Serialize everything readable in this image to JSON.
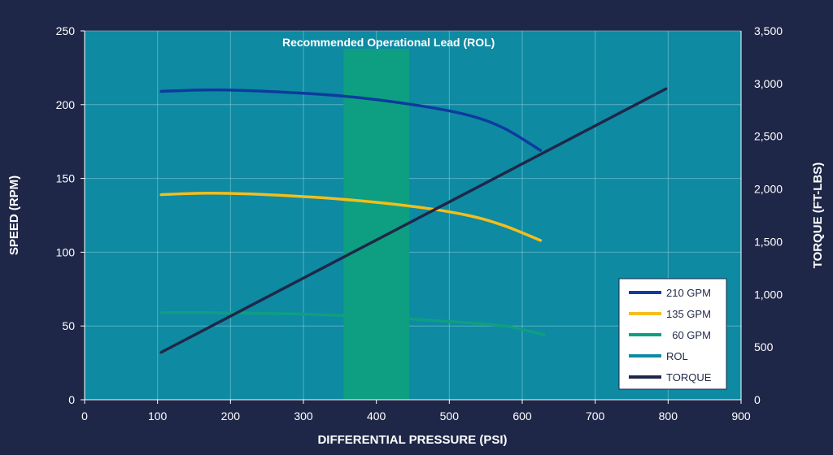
{
  "chart_data": {
    "type": "line",
    "title": "",
    "xlabel": "DIFFERENTIAL PRESSURE (PSI)",
    "ylabel": "SPEED (RPM)",
    "y2label": "TORQUE (FT-LBS)",
    "xlim": [
      0,
      900
    ],
    "ylim": [
      0,
      250
    ],
    "y2lim": [
      0,
      3500
    ],
    "x_ticks": [
      "0",
      "100",
      "200",
      "300",
      "400",
      "500",
      "600",
      "700",
      "800",
      "900"
    ],
    "y_ticks": [
      "0",
      "50",
      "100",
      "150",
      "200",
      "250"
    ],
    "y2_ticks": [
      "0",
      "500",
      "1,000",
      "1,500",
      "2,000",
      "2,500",
      "3,000",
      "3,500"
    ],
    "grid": true,
    "legend_position": "bottom-right",
    "rol": {
      "label": "Recommended Operational Lead (ROL)",
      "x_range": [
        355,
        445
      ],
      "color": "#0e9f82"
    },
    "series": [
      {
        "name": "210 GPM",
        "axis": "left",
        "color": "#0d3b9e",
        "x": [
          105,
          175,
          250,
          350,
          450,
          525,
          575,
          625
        ],
        "y": [
          209,
          210,
          209,
          206,
          200,
          193,
          184,
          169
        ]
      },
      {
        "name": "135 GPM",
        "axis": "left",
        "color": "#f4be1b",
        "x": [
          105,
          170,
          250,
          350,
          450,
          525,
          575,
          625
        ],
        "y": [
          139,
          140,
          139,
          136,
          131,
          125,
          118,
          108
        ]
      },
      {
        "name": "  60 GPM",
        "axis": "left",
        "color": "#0e9f82",
        "x": [
          105,
          175,
          300,
          400,
          500,
          575,
          630
        ],
        "y": [
          59,
          59,
          58,
          56,
          53,
          50,
          44
        ]
      },
      {
        "name": "ROL",
        "axis": "left",
        "color": "#0e8aa3",
        "x": [],
        "y": []
      },
      {
        "name": "TORQUE",
        "axis": "right",
        "color": "#1f2748",
        "x": [
          105,
          797
        ],
        "y": [
          450,
          2950
        ]
      }
    ]
  }
}
